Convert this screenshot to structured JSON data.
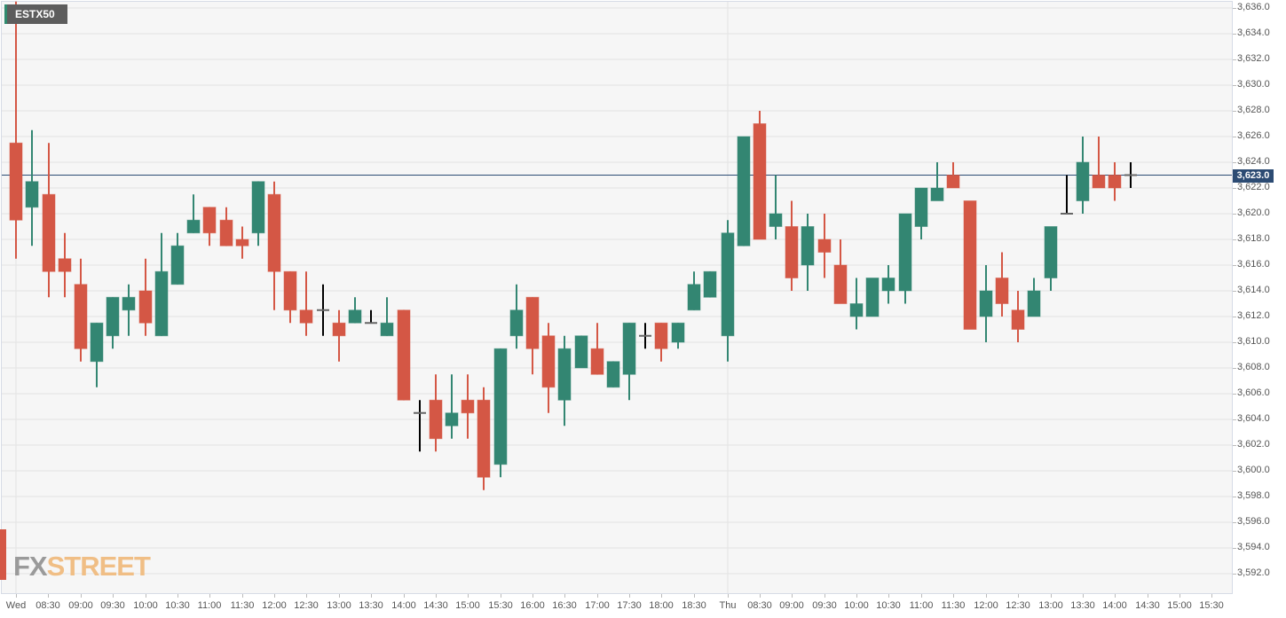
{
  "symbol": "ESTX50",
  "current_price": "3,623.0",
  "logo": {
    "part1": "FX",
    "part2": "STREET"
  },
  "colors": {
    "up": "#338672",
    "down": "#d45745",
    "doji": "#000000",
    "price_line": "#2c4b73",
    "grid": "#e3e3e3",
    "background": "#f6f6f6"
  },
  "chart_data": {
    "type": "candlestick",
    "title": "ESTX50",
    "xlabel": "",
    "ylabel": "",
    "ylim": [
      3590.5,
      3636.5
    ],
    "grid": true,
    "y_ticks": [
      "3,636.0",
      "3,634.0",
      "3,632.0",
      "3,630.0",
      "3,628.0",
      "3,626.0",
      "3,624.0",
      "3,622.0",
      "3,620.0",
      "3,618.0",
      "3,616.0",
      "3,614.0",
      "3,612.0",
      "3,610.0",
      "3,608.0",
      "3,606.0",
      "3,604.0",
      "3,602.0",
      "3,600.0",
      "3,598.0",
      "3,596.0",
      "3,594.0",
      "3,592.0"
    ],
    "x_ticks": [
      {
        "label": "Wed",
        "x": 18
      },
      {
        "label": "08:30",
        "x": 54
      },
      {
        "label": "09:00",
        "x": 91
      },
      {
        "label": "09:30",
        "x": 127
      },
      {
        "label": "10:00",
        "x": 164
      },
      {
        "label": "10:30",
        "x": 200
      },
      {
        "label": "11:00",
        "x": 236
      },
      {
        "label": "11:30",
        "x": 273
      },
      {
        "label": "12:00",
        "x": 309
      },
      {
        "label": "12:30",
        "x": 345
      },
      {
        "label": "13:00",
        "x": 382
      },
      {
        "label": "13:30",
        "x": 418
      },
      {
        "label": "14:00",
        "x": 455
      },
      {
        "label": "14:30",
        "x": 491
      },
      {
        "label": "15:00",
        "x": 527
      },
      {
        "label": "15:30",
        "x": 564
      },
      {
        "label": "16:00",
        "x": 600
      },
      {
        "label": "16:30",
        "x": 636
      },
      {
        "label": "17:00",
        "x": 673
      },
      {
        "label": "17:30",
        "x": 709
      },
      {
        "label": "18:00",
        "x": 745
      },
      {
        "label": "18:30",
        "x": 782
      },
      {
        "label": "Thu",
        "x": 820
      },
      {
        "label": "08:30",
        "x": 856
      },
      {
        "label": "09:00",
        "x": 892
      },
      {
        "label": "09:30",
        "x": 929
      },
      {
        "label": "10:00",
        "x": 965
      },
      {
        "label": "10:30",
        "x": 1001
      },
      {
        "label": "11:00",
        "x": 1038
      },
      {
        "label": "11:30",
        "x": 1074
      },
      {
        "label": "12:00",
        "x": 1111
      },
      {
        "label": "12:30",
        "x": 1147
      },
      {
        "label": "13:00",
        "x": 1184
      },
      {
        "label": "13:30",
        "x": 1220
      },
      {
        "label": "14:00",
        "x": 1256
      },
      {
        "label": "14:30",
        "x": 1293
      },
      {
        "label": "15:00",
        "x": 1329
      },
      {
        "label": "15:30",
        "x": 1365
      }
    ],
    "candles": [
      {
        "x": 18,
        "o": 3625.5,
        "h": 3636.5,
        "l": 3616.5,
        "c": 3619.5
      },
      {
        "x": 36,
        "o": 3620.5,
        "h": 3626.5,
        "l": 3617.5,
        "c": 3622.5
      },
      {
        "x": 55,
        "o": 3621.5,
        "h": 3625.5,
        "l": 3613.5,
        "c": 3615.5
      },
      {
        "x": 73,
        "o": 3616.5,
        "h": 3618.5,
        "l": 3613.5,
        "c": 3615.5
      },
      {
        "x": 91,
        "o": 3614.5,
        "h": 3616.5,
        "l": 3608.5,
        "c": 3609.5
      },
      {
        "x": 109,
        "o": 3608.5,
        "h": 3611.5,
        "l": 3606.5,
        "c": 3611.5
      },
      {
        "x": 127,
        "o": 3610.5,
        "h": 3613.5,
        "l": 3609.5,
        "c": 3613.5
      },
      {
        "x": 145,
        "o": 3612.5,
        "h": 3614.5,
        "l": 3610.5,
        "c": 3613.5
      },
      {
        "x": 164,
        "o": 3614.0,
        "h": 3616.5,
        "l": 3610.5,
        "c": 3611.5
      },
      {
        "x": 182,
        "o": 3610.5,
        "h": 3618.5,
        "l": 3610.5,
        "c": 3615.5
      },
      {
        "x": 200,
        "o": 3614.5,
        "h": 3618.5,
        "l": 3614.5,
        "c": 3617.5
      },
      {
        "x": 218,
        "o": 3618.5,
        "h": 3621.5,
        "l": 3618.5,
        "c": 3619.5
      },
      {
        "x": 236,
        "o": 3620.5,
        "h": 3620.5,
        "l": 3617.5,
        "c": 3618.5
      },
      {
        "x": 255,
        "o": 3619.5,
        "h": 3620.5,
        "l": 3617.5,
        "c": 3617.5
      },
      {
        "x": 273,
        "o": 3618.0,
        "h": 3619.0,
        "l": 3616.5,
        "c": 3617.5
      },
      {
        "x": 291,
        "o": 3618.5,
        "h": 3622.5,
        "l": 3617.5,
        "c": 3622.5
      },
      {
        "x": 309,
        "o": 3621.5,
        "h": 3622.5,
        "l": 3612.5,
        "c": 3615.5
      },
      {
        "x": 327,
        "o": 3615.5,
        "h": 3615.5,
        "l": 3611.5,
        "c": 3612.5
      },
      {
        "x": 345,
        "o": 3612.5,
        "h": 3615.5,
        "l": 3610.5,
        "c": 3611.5
      },
      {
        "x": 364,
        "o": 3612.5,
        "h": 3614.5,
        "l": 3610.5,
        "c": 3612.5
      },
      {
        "x": 382,
        "o": 3611.5,
        "h": 3612.5,
        "l": 3608.5,
        "c": 3610.5
      },
      {
        "x": 400,
        "o": 3611.5,
        "h": 3613.5,
        "l": 3611.5,
        "c": 3612.5
      },
      {
        "x": 418,
        "o": 3611.5,
        "h": 3612.5,
        "l": 3611.5,
        "c": 3611.5
      },
      {
        "x": 436,
        "o": 3610.5,
        "h": 3613.5,
        "l": 3610.5,
        "c": 3611.5
      },
      {
        "x": 455,
        "o": 3612.5,
        "h": 3612.5,
        "l": 3605.5,
        "c": 3605.5
      },
      {
        "x": 473,
        "o": 3604.5,
        "h": 3605.5,
        "l": 3601.5,
        "c": 3604.5
      },
      {
        "x": 491,
        "o": 3605.5,
        "h": 3607.5,
        "l": 3601.5,
        "c": 3602.5
      },
      {
        "x": 509,
        "o": 3603.5,
        "h": 3607.5,
        "l": 3602.5,
        "c": 3604.5
      },
      {
        "x": 527,
        "o": 3605.5,
        "h": 3607.5,
        "l": 3602.5,
        "c": 3604.5
      },
      {
        "x": 545,
        "o": 3605.5,
        "h": 3606.5,
        "l": 3598.5,
        "c": 3599.5
      },
      {
        "x": 564,
        "o": 3600.5,
        "h": 3609.5,
        "l": 3599.5,
        "c": 3609.5
      },
      {
        "x": 582,
        "o": 3610.5,
        "h": 3614.5,
        "l": 3609.5,
        "c": 3612.5
      },
      {
        "x": 600,
        "o": 3613.5,
        "h": 3613.5,
        "l": 3607.5,
        "c": 3609.5
      },
      {
        "x": 618,
        "o": 3610.5,
        "h": 3611.5,
        "l": 3604.5,
        "c": 3606.5
      },
      {
        "x": 636,
        "o": 3605.5,
        "h": 3610.5,
        "l": 3603.5,
        "c": 3609.5
      },
      {
        "x": 655,
        "o": 3608.0,
        "h": 3610.5,
        "l": 3608.0,
        "c": 3610.5
      },
      {
        "x": 673,
        "o": 3609.5,
        "h": 3611.5,
        "l": 3607.5,
        "c": 3607.5
      },
      {
        "x": 691,
        "o": 3606.5,
        "h": 3608.5,
        "l": 3606.5,
        "c": 3608.5
      },
      {
        "x": 709,
        "o": 3607.5,
        "h": 3611.5,
        "l": 3605.5,
        "c": 3611.5
      },
      {
        "x": 727,
        "o": 3610.5,
        "h": 3611.5,
        "l": 3609.5,
        "c": 3610.5
      },
      {
        "x": 745,
        "o": 3611.5,
        "h": 3611.5,
        "l": 3608.5,
        "c": 3609.5
      },
      {
        "x": 764,
        "o": 3610.0,
        "h": 3611.5,
        "l": 3609.5,
        "c": 3611.5
      },
      {
        "x": 782,
        "o": 3612.5,
        "h": 3615.5,
        "l": 3612.5,
        "c": 3614.5
      },
      {
        "x": 800,
        "o": 3613.5,
        "h": 3615.5,
        "l": 3613.5,
        "c": 3615.5
      },
      {
        "x": 820,
        "o": 3610.5,
        "h": 3619.5,
        "l": 3608.5,
        "c": 3618.5
      },
      {
        "x": 838,
        "o": 3617.5,
        "h": 3626.0,
        "l": 3617.5,
        "c": 3626.0
      },
      {
        "x": 856,
        "o": 3627.0,
        "h": 3628.0,
        "l": 3618.0,
        "c": 3618.0
      },
      {
        "x": 874,
        "o": 3619.0,
        "h": 3623.0,
        "l": 3618.0,
        "c": 3620.0
      },
      {
        "x": 892,
        "o": 3619.0,
        "h": 3621.0,
        "l": 3614.0,
        "c": 3615.0
      },
      {
        "x": 910,
        "o": 3616.0,
        "h": 3620.0,
        "l": 3614.0,
        "c": 3619.0
      },
      {
        "x": 929,
        "o": 3618.0,
        "h": 3620.0,
        "l": 3615.0,
        "c": 3617.0
      },
      {
        "x": 947,
        "o": 3616.0,
        "h": 3618.0,
        "l": 3613.0,
        "c": 3613.0
      },
      {
        "x": 965,
        "o": 3612.0,
        "h": 3615.0,
        "l": 3611.0,
        "c": 3613.0
      },
      {
        "x": 983,
        "o": 3612.0,
        "h": 3615.0,
        "l": 3612.0,
        "c": 3615.0
      },
      {
        "x": 1001,
        "o": 3614.0,
        "h": 3616.0,
        "l": 3613.0,
        "c": 3615.0
      },
      {
        "x": 1020,
        "o": 3614.0,
        "h": 3620.0,
        "l": 3613.0,
        "c": 3620.0
      },
      {
        "x": 1038,
        "o": 3619.0,
        "h": 3622.0,
        "l": 3618.0,
        "c": 3622.0
      },
      {
        "x": 1056,
        "o": 3621.0,
        "h": 3624.0,
        "l": 3621.0,
        "c": 3622.0
      },
      {
        "x": 1074,
        "o": 3623.0,
        "h": 3624.0,
        "l": 3622.0,
        "c": 3622.0
      },
      {
        "x": 1093,
        "o": 3621.0,
        "h": 3621.0,
        "l": 3611.0,
        "c": 3611.0
      },
      {
        "x": 1111,
        "o": 3612.0,
        "h": 3616.0,
        "l": 3610.0,
        "c": 3614.0
      },
      {
        "x": 1129,
        "o": 3615.0,
        "h": 3617.0,
        "l": 3612.0,
        "c": 3613.0
      },
      {
        "x": 1147,
        "o": 3612.5,
        "h": 3614.0,
        "l": 3610.0,
        "c": 3611.0
      },
      {
        "x": 1165,
        "o": 3612.0,
        "h": 3615.0,
        "l": 3612.0,
        "c": 3614.0
      },
      {
        "x": 1184,
        "o": 3615.0,
        "h": 3619.0,
        "l": 3614.0,
        "c": 3619.0
      },
      {
        "x": 1202,
        "o": 3620.0,
        "h": 3623.0,
        "l": 3620.0,
        "c": 3620.0
      },
      {
        "x": 1220,
        "o": 3621.0,
        "h": 3626.0,
        "l": 3620.0,
        "c": 3624.0
      },
      {
        "x": 1238,
        "o": 3623.0,
        "h": 3626.0,
        "l": 3622.0,
        "c": 3622.0
      },
      {
        "x": 1256,
        "o": 3623.0,
        "h": 3624.0,
        "l": 3621.0,
        "c": 3622.0
      },
      {
        "x": 1274,
        "o": 3623.0,
        "h": 3624.0,
        "l": 3622.0,
        "c": 3623.0
      }
    ]
  }
}
